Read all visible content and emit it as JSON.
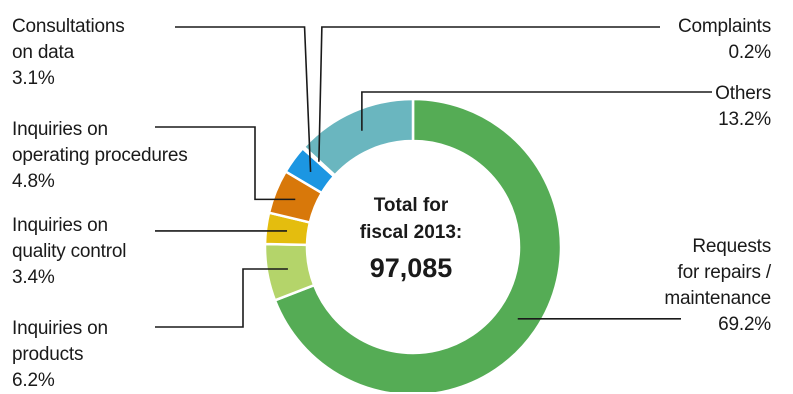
{
  "chart_data": {
    "type": "pie",
    "center_label": [
      "Total for",
      "fiscal 2013:"
    ],
    "total": "97,085",
    "slices": [
      {
        "key": "repairs",
        "label": [
          "Requests",
          "for repairs /",
          "maintenance"
        ],
        "value": 69.2,
        "pct": "69.2%",
        "color": "#55ac55"
      },
      {
        "key": "products",
        "label": [
          "Inquiries on",
          "products"
        ],
        "value": 6.2,
        "pct": "6.2%",
        "color": "#b4d46a"
      },
      {
        "key": "quality",
        "label": [
          "Inquiries on",
          "quality control"
        ],
        "value": 3.4,
        "pct": "3.4%",
        "color": "#e4bd0e"
      },
      {
        "key": "operating",
        "label": [
          "Inquiries on",
          "operating procedures"
        ],
        "value": 4.8,
        "pct": "4.8%",
        "color": "#d8780a"
      },
      {
        "key": "consult",
        "label": [
          "Consultations",
          "on data"
        ],
        "value": 3.1,
        "pct": "3.1%",
        "color": "#1c96e2"
      },
      {
        "key": "complaints",
        "label": [
          "Complaints"
        ],
        "value": 0.2,
        "pct": "0.2%",
        "color": "#2e5f8a"
      },
      {
        "key": "others",
        "label": [
          "Others"
        ],
        "value": 13.2,
        "pct": "13.2%",
        "color": "#6ab6bf"
      }
    ]
  }
}
